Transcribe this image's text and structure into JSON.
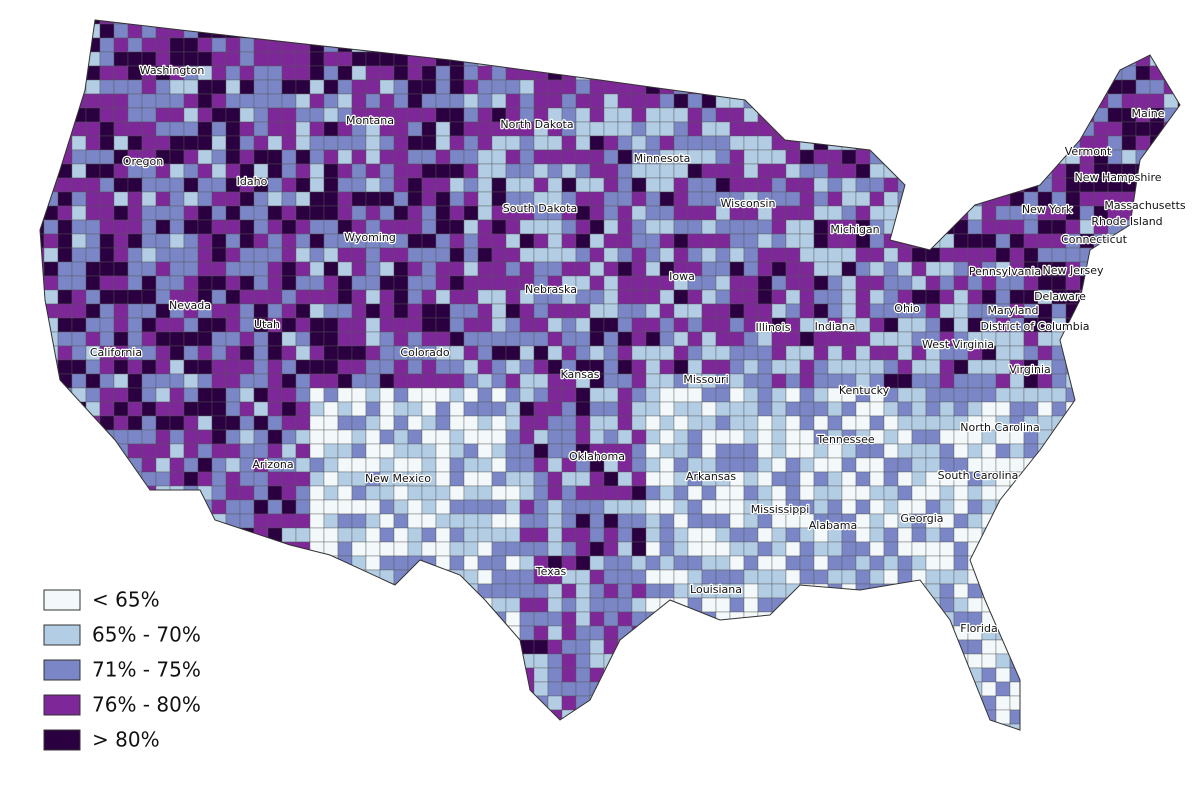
{
  "legend": [
    {
      "label": "< 65%",
      "color": "#f3f8fb"
    },
    {
      "label": "65% - 70%",
      "color": "#b3cde4"
    },
    {
      "label": "71% - 75%",
      "color": "#7a86c6"
    },
    {
      "label": "76% - 80%",
      "color": "#7d2799"
    },
    {
      "label": "> 80%",
      "color": "#2a0040"
    }
  ],
  "states": [
    "Washington",
    "Montana",
    "North Dakota",
    "Minnesota",
    "Oregon",
    "Idaho",
    "South Dakota",
    "Wisconsin",
    "Michigan",
    "Vermont",
    "New Hampshire",
    "Maine",
    "Massachusetts",
    "Rhode Island",
    "Connecticut",
    "New York",
    "New Jersey",
    "Pennsylvania",
    "Delaware",
    "Maryland",
    "District of Columbia",
    "West Virginia",
    "Virginia",
    "Wyoming",
    "Iowa",
    "Nebraska",
    "Nevada",
    "Utah",
    "Illinois",
    "Indiana",
    "Ohio",
    "California",
    "Colorado",
    "Kansas",
    "Missouri",
    "Kentucky",
    "Tennessee",
    "North Carolina",
    "Oklahoma",
    "Arkansas",
    "New Mexico",
    "Arizona",
    "South Carolina",
    "Georgia",
    "Mississippi",
    "Alabama",
    "Texas",
    "Louisiana",
    "Florida"
  ]
}
